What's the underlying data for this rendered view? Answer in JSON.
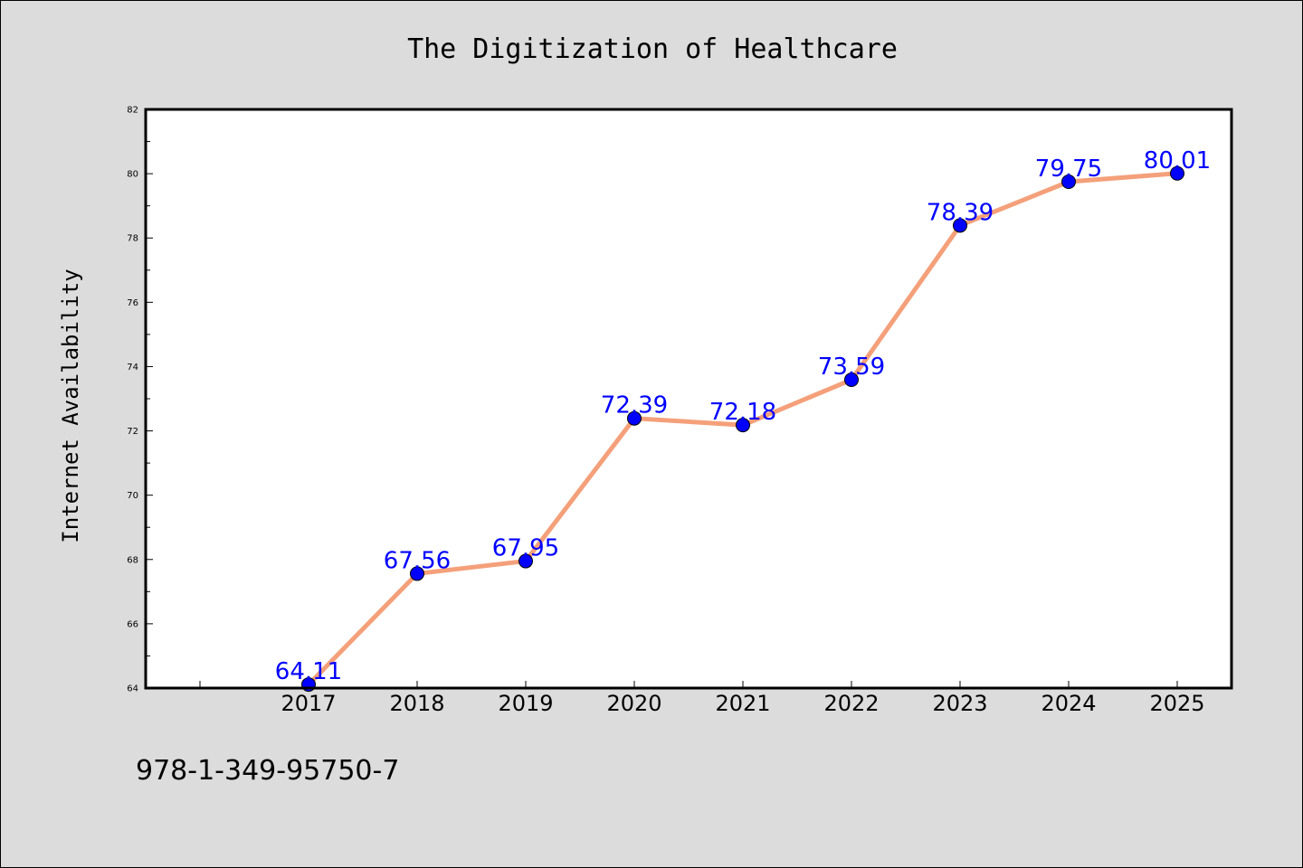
{
  "chart_data": {
    "type": "line",
    "title": "The Digitization of Healthcare",
    "xlabel": "",
    "ylabel": "Internet Availability",
    "categories": [
      "2017",
      "2018",
      "2019",
      "2020",
      "2021",
      "2022",
      "2023",
      "2024",
      "2025"
    ],
    "values": [
      64.11,
      67.56,
      67.95,
      72.39,
      72.18,
      73.59,
      78.39,
      79.75,
      80.01
    ],
    "data_labels": [
      "64.11",
      "67.56",
      "67.95",
      "72.39",
      "72.18",
      "73.59",
      "78.39",
      "79.75",
      "80.01"
    ],
    "ylim": [
      64,
      82
    ],
    "yticks": [
      "64",
      "66",
      "68",
      "70",
      "72",
      "74",
      "76",
      "78",
      "80",
      "82"
    ],
    "grid": false,
    "line_color": "#f4a07a",
    "marker_color": "#0000ff",
    "label_color": "#0000ff",
    "background_color": "#dcdcdc",
    "plot_background": "#ffffff"
  },
  "footer": {
    "text": "978-1-349-95750-7"
  }
}
